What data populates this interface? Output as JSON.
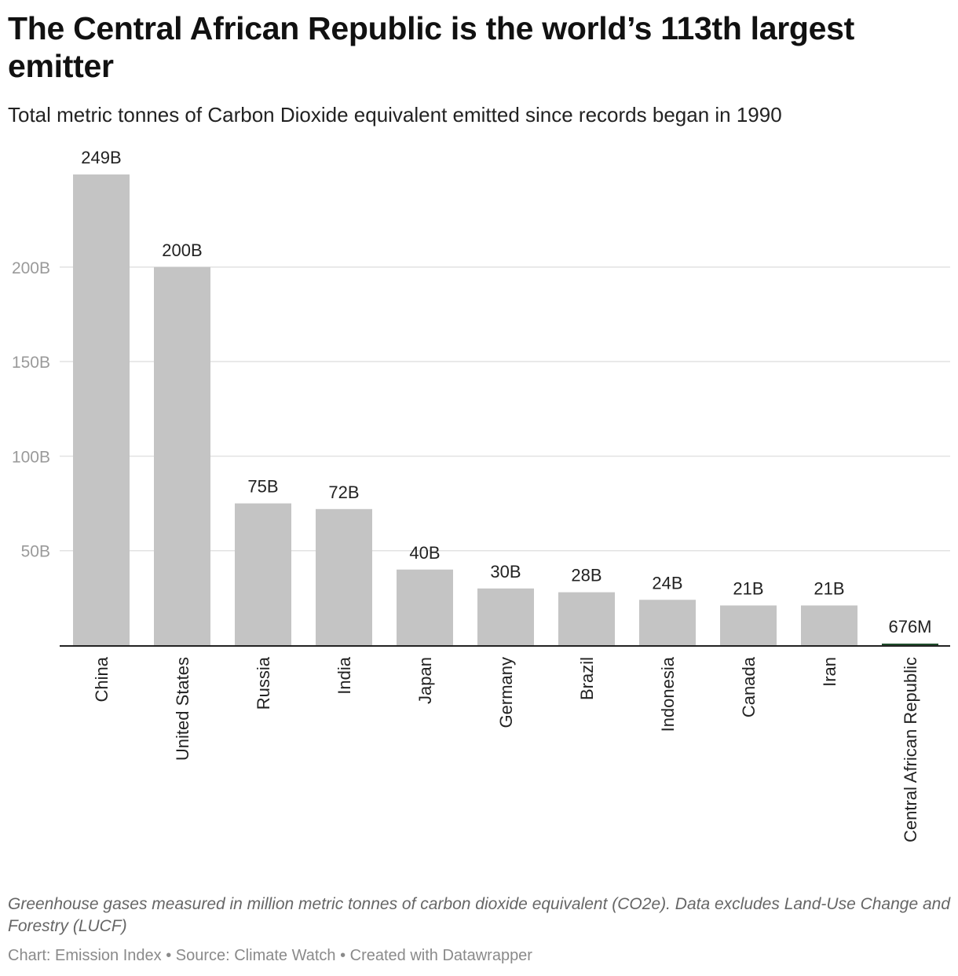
{
  "header": {
    "title": "The Central African Republic is the world’s 113th largest emitter",
    "subtitle": "Total metric tonnes of Carbon Dioxide equivalent emitted since records began in 1990"
  },
  "footer": {
    "notes": "Greenhouse gases measured in million metric tonnes of carbon dioxide equivalent (CO2e). Data excludes Land-Use Change and Forestry (LUCF)",
    "byline": "Chart: Emission Index • Source: Climate Watch • Created with Datawrapper"
  },
  "colors": {
    "bar_default": "#c4c4c4",
    "bar_highlight": "#1f4d2b",
    "gridline": "#e2e2e2",
    "axis_line": "#222222",
    "tick_label": "#9a9a9a",
    "value_label": "#222222"
  },
  "chart_data": {
    "type": "bar",
    "categories": [
      "China",
      "United States",
      "Russia",
      "India",
      "Japan",
      "Germany",
      "Brazil",
      "Indonesia",
      "Canada",
      "Iran",
      "Central African Republic"
    ],
    "values": [
      249,
      200,
      75,
      72,
      40,
      30,
      28,
      24,
      21,
      21,
      0.676
    ],
    "value_labels": [
      "249B",
      "200B",
      "75B",
      "72B",
      "40B",
      "30B",
      "28B",
      "24B",
      "21B",
      "21B",
      "676M"
    ],
    "highlight": "Central African Republic",
    "y_ticks": [
      50,
      100,
      150,
      200
    ],
    "y_tick_labels": [
      "50B",
      "100B",
      "150B",
      "200B"
    ],
    "ylim": [
      0,
      249
    ],
    "grid": true,
    "title": "The Central African Republic is the world’s 113th largest emitter",
    "xlabel": "",
    "ylabel": ""
  }
}
